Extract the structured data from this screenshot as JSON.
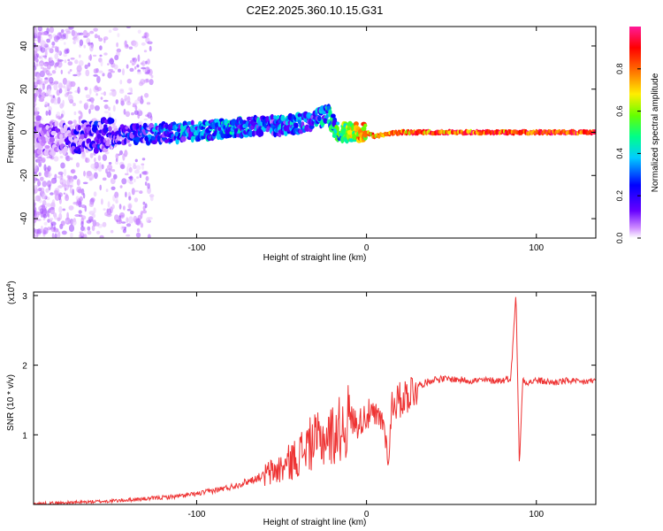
{
  "chart_data": [
    {
      "type": "heatmap",
      "title": "C2E2.2025.360.10.15.G31",
      "xlabel": "Height of straight line (km)",
      "ylabel": "Frequency (Hz)",
      "xlim": [
        -196,
        135
      ],
      "ylim": [
        -49,
        49
      ],
      "xticks": [
        -100,
        0,
        100
      ],
      "xtick_labels": [
        "-100",
        "0",
        "100"
      ],
      "yticks": [
        -40,
        -20,
        0,
        20,
        40
      ],
      "ytick_labels": [
        "-40",
        "-20",
        "0",
        "20",
        "40"
      ],
      "colorbar": {
        "label": "Normalized spectral amplitude",
        "range": [
          0.0,
          1.0
        ],
        "ticks": [
          0.0,
          0.2,
          0.4,
          0.6,
          0.8
        ],
        "tick_labels": [
          "0.0",
          "0.2",
          "0.4",
          "0.6",
          "0.8"
        ],
        "colors": [
          "#ffffff",
          "#cc88ff",
          "#6600ff",
          "#0000ff",
          "#00ccff",
          "#00ff88",
          "#66ff00",
          "#ffee00",
          "#ff6600",
          "#ff0000",
          "#ff1a99"
        ]
      },
      "ridge": {
        "x": [
          -190,
          -170,
          -150,
          -130,
          -110,
          -95,
          -80,
          -65,
          -50,
          -40,
          -30,
          -22,
          -18,
          -10,
          -5,
          0,
          5,
          10,
          20,
          40,
          60,
          80,
          85,
          100,
          120,
          135
        ],
        "freq": [
          -3,
          -2,
          -1,
          -1,
          0,
          1,
          2,
          3,
          3,
          4,
          6,
          8,
          1,
          0,
          0,
          0,
          -2,
          -1,
          0,
          0,
          0,
          0,
          0,
          0,
          0,
          0
        ],
        "amplitude": [
          0.15,
          0.25,
          0.3,
          0.35,
          0.4,
          0.45,
          0.45,
          0.4,
          0.4,
          0.4,
          0.4,
          0.5,
          0.55,
          0.7,
          0.8,
          0.85,
          0.85,
          0.85,
          0.9,
          0.95,
          0.95,
          0.95,
          0.95,
          0.95,
          0.95,
          0.95
        ]
      }
    },
    {
      "type": "line",
      "xlabel": "Height of straight line (km)",
      "ylabel": "SNR (10 * v/v)",
      "scale_label": "(x10",
      "scale_exponent": "4",
      "scale_close": ")",
      "xlim": [
        -196,
        135
      ],
      "ylim": [
        0,
        3.05
      ],
      "xticks": [
        -100,
        0,
        100
      ],
      "xtick_labels": [
        "-100",
        "0",
        "100"
      ],
      "yticks": [
        1,
        2,
        3
      ],
      "ytick_labels": [
        "1",
        "2",
        "3"
      ],
      "color": "#ee3333",
      "series": [
        {
          "name": "SNR",
          "x": [
            -196,
            -170,
            -150,
            -130,
            -110,
            -100,
            -90,
            -80,
            -70,
            -60,
            -50,
            -40,
            -35,
            -30,
            -25,
            -20,
            -15,
            -12,
            -10,
            -5,
            0,
            5,
            10,
            13,
            15,
            20,
            25,
            30,
            35,
            40,
            50,
            60,
            70,
            80,
            85,
            88,
            90,
            92,
            95,
            100,
            110,
            120,
            125,
            135
          ],
          "y": [
            0.01,
            0.03,
            0.05,
            0.08,
            0.12,
            0.15,
            0.2,
            0.25,
            0.33,
            0.42,
            0.52,
            0.7,
            0.85,
            0.9,
            0.95,
            1.0,
            1.1,
            1.15,
            1.25,
            1.15,
            1.3,
            1.25,
            1.2,
            0.6,
            1.45,
            1.5,
            1.6,
            1.7,
            1.75,
            1.8,
            1.8,
            1.78,
            1.78,
            1.78,
            1.82,
            3.05,
            0.55,
            1.8,
            1.75,
            1.78,
            1.75,
            1.78,
            1.75,
            1.78
          ]
        }
      ]
    }
  ]
}
